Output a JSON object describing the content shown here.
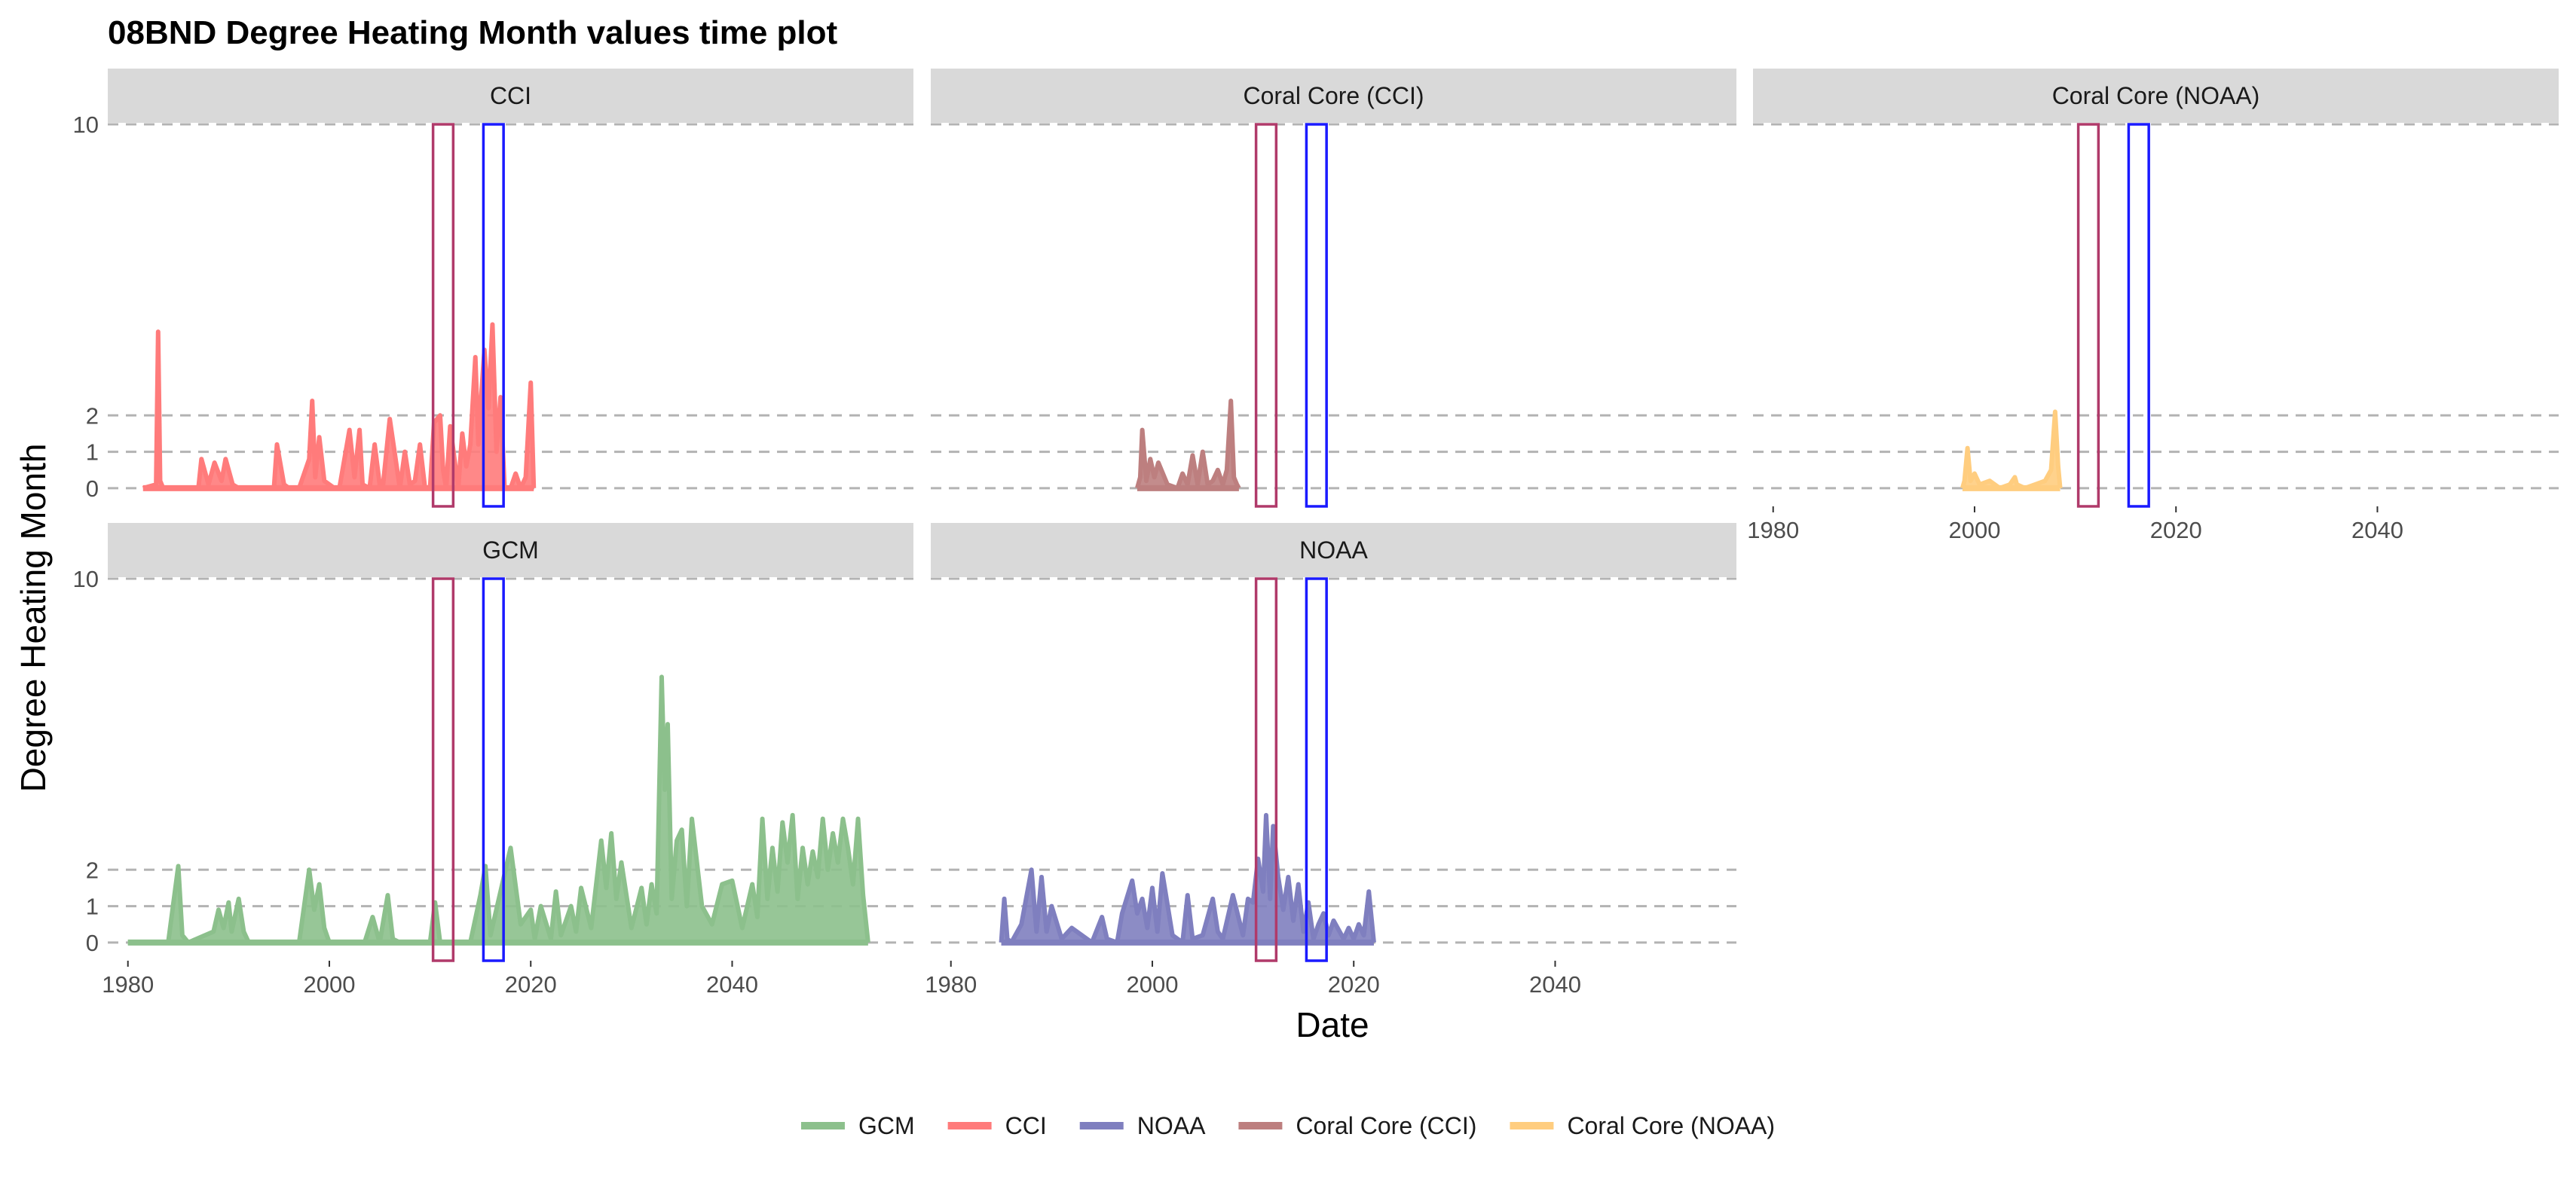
{
  "chart_data": {
    "type": "line",
    "title": "08BND Degree Heating Month values time plot",
    "xlabel": "Date",
    "ylabel": "Degree Heating Month",
    "xlim": [
      1978,
      2058
    ],
    "ylim": [
      -0.5,
      10
    ],
    "x_ticks": [
      "1980",
      "2000",
      "2020",
      "2040"
    ],
    "x_tick_values": [
      1980,
      2000,
      2020,
      2040
    ],
    "y_ticks": [
      "0",
      "1",
      "2",
      "10"
    ],
    "y_tick_values": [
      0,
      1,
      2,
      10
    ],
    "grid": "dashed horizontal lines at y-ticks",
    "legend_position": "bottom",
    "highlight_windows": [
      {
        "color": "#b03a6a",
        "x": [
          2010.3,
          2012.3
        ]
      },
      {
        "color": "#1a1aff",
        "x": [
          2015.3,
          2017.3
        ]
      }
    ],
    "legend": [
      {
        "name": "GCM",
        "color": "#8cc08c"
      },
      {
        "name": "CCI",
        "color": "#ff7b7b"
      },
      {
        "name": "NOAA",
        "color": "#7f7fbf"
      },
      {
        "name": "Coral Core (CCI)",
        "color": "#bd7f7f"
      },
      {
        "name": "Coral Core (NOAA)",
        "color": "#ffcd7f"
      }
    ],
    "panels": [
      {
        "strip": "CCI",
        "color": "#ff7b7b",
        "x": [
          1981.5,
          1982.8,
          1983.0,
          1983.2,
          1983.5,
          1985.0,
          1987.0,
          1987.3,
          1988.0,
          1988.6,
          1989.3,
          1989.7,
          1990.4,
          1991.0,
          1993.0,
          1994.5,
          1994.8,
          1995.5,
          1996.0,
          1997.0,
          1998.0,
          1998.3,
          1998.6,
          1999.0,
          1999.5,
          2000.5,
          2001.0,
          2002.0,
          2002.5,
          2003.0,
          2003.3,
          2004.0,
          2004.5,
          2005.0,
          2005.3,
          2006.0,
          2007.0,
          2007.5,
          2008.0,
          2008.5,
          2009.0,
          2009.5,
          2010.0,
          2010.4,
          2011.0,
          2011.3,
          2011.6,
          2012.0,
          2012.8,
          2013.2,
          2013.6,
          2014.0,
          2014.5,
          2014.8,
          2015.0,
          2015.4,
          2015.8,
          2016.2,
          2016.6,
          2017.0,
          2017.4,
          2018.0,
          2018.5,
          2019.0,
          2019.5,
          2020.0,
          2020.3
        ],
        "y": [
          0,
          0.1,
          4.3,
          0.2,
          0,
          0,
          0,
          0.8,
          0.1,
          0.7,
          0.2,
          0.8,
          0.1,
          0,
          0,
          0,
          1.2,
          0.1,
          0,
          0,
          0.8,
          2.4,
          0.3,
          1.4,
          0.2,
          0,
          0,
          1.6,
          0.3,
          1.6,
          0.1,
          0,
          1.2,
          0.1,
          0,
          1.9,
          0,
          1,
          0.1,
          0.2,
          1.2,
          0,
          0,
          1.8,
          2,
          0.5,
          0,
          1.7,
          0,
          1.5,
          0.6,
          1.2,
          3.6,
          1.2,
          2.2,
          3.8,
          2.2,
          4.5,
          1.0,
          2.5,
          0,
          0,
          0.4,
          0,
          0.3,
          2.9,
          0
        ]
      },
      {
        "strip": "Coral Core (CCI)",
        "color": "#bd7f7f",
        "x": [
          1998.5,
          1998.8,
          1999.0,
          1999.4,
          1999.8,
          2000.2,
          2000.6,
          2001.5,
          2002.5,
          2003.0,
          2003.5,
          2004.0,
          2004.5,
          2005.0,
          2005.5,
          2006.0,
          2006.5,
          2007.0,
          2007.4,
          2007.8,
          2008.1,
          2008.4,
          2008.6
        ],
        "y": [
          0,
          0.3,
          1.6,
          0.2,
          0.8,
          0.3,
          0.7,
          0.1,
          0,
          0.4,
          0.1,
          0.9,
          0.1,
          1.0,
          0.1,
          0.2,
          0.5,
          0.1,
          0.5,
          2.4,
          0.3,
          0.1,
          0
        ]
      },
      {
        "strip": "Coral Core (NOAA)",
        "color": "#ffcd7f",
        "x": [
          1998.8,
          1999.0,
          1999.3,
          1999.6,
          2000.0,
          2000.5,
          2001.5,
          2002.5,
          2003.5,
          2004.0,
          2004.2,
          2005.0,
          2006.0,
          2007.0,
          2007.6,
          2008.0,
          2008.3,
          2008.5
        ],
        "y": [
          0,
          0.2,
          1.1,
          0.2,
          0.4,
          0.1,
          0.2,
          0,
          0.1,
          0.3,
          0.1,
          0,
          0.1,
          0.2,
          0.5,
          2.1,
          0.6,
          0
        ]
      },
      {
        "strip": "GCM",
        "color": "#8cc08c",
        "x": [
          1980.0,
          1984.0,
          1985.0,
          1985.4,
          1986.0,
          1988.5,
          1989.0,
          1989.5,
          1990.0,
          1990.3,
          1991.0,
          1991.5,
          1992.0,
          1993.0,
          1997.0,
          1998.0,
          1998.5,
          1999.0,
          1999.5,
          2000.0,
          2003.5,
          2004.3,
          2005.0,
          2005.8,
          2006.3,
          2007.0,
          2010.0,
          2010.5,
          2011.0,
          2014.0,
          2015.0,
          2015.5,
          2016.0,
          2018.0,
          2019.0,
          2020.0,
          2020.4,
          2021.0,
          2022.0,
          2022.5,
          2023.0,
          2024.0,
          2024.5,
          2025.0,
          2026.0,
          2027.0,
          2027.5,
          2028.0,
          2028.5,
          2029.0,
          2030.0,
          2031.0,
          2031.5,
          2032.0,
          2032.5,
          2033.0,
          2033.3,
          2033.6,
          2034.0,
          2034.5,
          2035.0,
          2035.5,
          2036.0,
          2037.0,
          2038.0,
          2039.0,
          2040.0,
          2041.0,
          2042.0,
          2042.5,
          2043.0,
          2043.5,
          2044.0,
          2044.5,
          2045.0,
          2045.5,
          2046.0,
          2046.5,
          2047.0,
          2047.5,
          2048.0,
          2048.5,
          2049.0,
          2049.5,
          2050.0,
          2050.5,
          2051.0,
          2051.5,
          2052.0,
          2052.5,
          2053.0,
          2053.5
        ],
        "y": [
          0,
          0,
          2.1,
          0.2,
          0,
          0.3,
          0.9,
          0.4,
          1.1,
          0.3,
          1.2,
          0.3,
          0,
          0,
          0,
          2,
          0.9,
          1.6,
          0.4,
          0,
          0,
          0.7,
          0,
          1.3,
          0.1,
          0,
          0,
          1.1,
          0,
          0,
          1.3,
          2.1,
          0.2,
          2.6,
          0.5,
          0.9,
          0.1,
          1.0,
          0.1,
          1.4,
          0.2,
          1.0,
          0.3,
          1.5,
          0.4,
          2.8,
          1.5,
          3.0,
          1.2,
          2.2,
          0.4,
          1.5,
          0.5,
          1.6,
          0.8,
          7.3,
          4.2,
          6.0,
          1.2,
          2.8,
          3.1,
          1.0,
          3.4,
          1.0,
          0.5,
          1.6,
          1.7,
          0.4,
          1.6,
          0.7,
          3.4,
          1.2,
          2.6,
          1.4,
          3.3,
          2.2,
          3.5,
          1.2,
          2.6,
          1.6,
          2.5,
          1.8,
          3.4,
          2.0,
          3.0,
          2.2,
          3.4,
          2.6,
          1.6,
          3.4,
          1.3,
          0
        ]
      },
      {
        "strip": "NOAA",
        "color": "#7f7fbf",
        "x": [
          1985.0,
          1985.3,
          1985.6,
          1986.0,
          1987.0,
          1988.0,
          1988.5,
          1989.0,
          1989.5,
          1990.0,
          1991.0,
          1992.0,
          1993.0,
          1994.0,
          1995.0,
          1995.5,
          1996.5,
          1997.0,
          1998.0,
          1998.5,
          1999.0,
          1999.5,
          2000.0,
          2000.5,
          2001.0,
          2002.0,
          2003.0,
          2003.5,
          2004.0,
          2005.0,
          2006.0,
          2006.5,
          2007.0,
          2008.0,
          2009.0,
          2009.5,
          2010.0,
          2010.5,
          2011.0,
          2011.3,
          2011.7,
          2012.0,
          2012.5,
          2013.0,
          2013.5,
          2014.0,
          2014.5,
          2015.0,
          2015.5,
          2016.0,
          2016.5,
          2017.0,
          2017.5,
          2018.0,
          2019.0,
          2019.5,
          2020.0,
          2020.5,
          2021.0,
          2021.5,
          2022.0
        ],
        "y": [
          0,
          1.2,
          0.1,
          0,
          0.5,
          2.0,
          0.3,
          1.8,
          0.3,
          1.0,
          0.1,
          0.4,
          0.2,
          0,
          0.7,
          0.1,
          0,
          0.8,
          1.7,
          0.8,
          1.2,
          0.4,
          1.5,
          0.3,
          1.9,
          0.2,
          0,
          1.3,
          0.1,
          0.2,
          1.2,
          0.3,
          0.1,
          1.3,
          0.2,
          1.2,
          1.1,
          2.3,
          1.4,
          3.5,
          1.2,
          3.2,
          1.8,
          0.9,
          1.8,
          0.6,
          1.6,
          0.3,
          1.1,
          0.1,
          0.5,
          0.8,
          0.2,
          0.6,
          0.1,
          0.4,
          0.1,
          0.5,
          0.2,
          1.4,
          0
        ]
      }
    ]
  }
}
